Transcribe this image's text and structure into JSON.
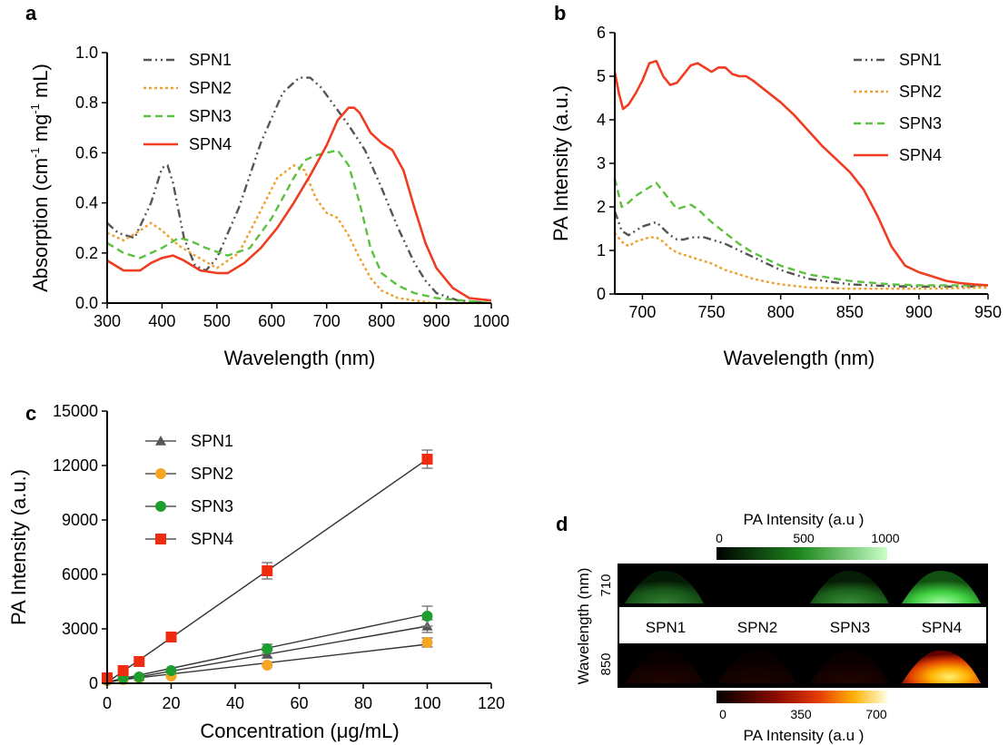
{
  "colors": {
    "SPN1": "#555555",
    "SPN2": "#f0a030",
    "SPN3": "#5cc040",
    "SPN4": "#f03c20",
    "c_SPN1": "#555555",
    "c_SPN2": "#f5a623",
    "c_SPN3": "#1e9e2e",
    "c_SPN4": "#f02c10"
  },
  "chart_data": [
    {
      "panel": "a",
      "type": "line",
      "xlabel": "Wavelength (nm)",
      "ylabel_main": "Absorption (cm",
      "ylabel_sup1": "-1",
      "ylabel_mid": " mg",
      "ylabel_sup2": "-1",
      "ylabel_end": " mL)",
      "xlim": [
        300,
        1000
      ],
      "ylim": [
        0,
        1.0
      ],
      "xticks": [
        "300",
        "400",
        "500",
        "600",
        "700",
        "800",
        "900",
        "1000"
      ],
      "yticks": [
        "0.0",
        "0.2",
        "0.4",
        "0.6",
        "0.8",
        "1.0"
      ],
      "legend": "top-left",
      "series": [
        {
          "name": "SPN1",
          "style": "dashdot",
          "x": [
            300,
            320,
            350,
            380,
            400,
            410,
            420,
            440,
            460,
            480,
            500,
            540,
            580,
            620,
            650,
            670,
            690,
            710,
            740,
            770,
            800,
            830,
            860,
            880,
            900,
            940,
            1000
          ],
          "y": [
            0.32,
            0.28,
            0.26,
            0.4,
            0.54,
            0.55,
            0.48,
            0.26,
            0.15,
            0.13,
            0.18,
            0.38,
            0.64,
            0.84,
            0.9,
            0.9,
            0.86,
            0.8,
            0.71,
            0.61,
            0.46,
            0.3,
            0.16,
            0.09,
            0.04,
            0.01,
            0.0
          ]
        },
        {
          "name": "SPN2",
          "style": "dotted",
          "x": [
            300,
            330,
            360,
            380,
            400,
            430,
            460,
            500,
            540,
            580,
            610,
            640,
            660,
            680,
            700,
            720,
            740,
            760,
            780,
            800,
            830,
            860,
            900,
            950,
            1000
          ],
          "y": [
            0.28,
            0.25,
            0.29,
            0.32,
            0.29,
            0.23,
            0.19,
            0.14,
            0.2,
            0.37,
            0.5,
            0.55,
            0.53,
            0.42,
            0.36,
            0.34,
            0.27,
            0.18,
            0.1,
            0.05,
            0.02,
            0.01,
            0.0,
            0.0,
            0.0
          ]
        },
        {
          "name": "SPN3",
          "style": "dashed",
          "x": [
            300,
            330,
            360,
            400,
            430,
            450,
            480,
            520,
            560,
            600,
            640,
            660,
            680,
            700,
            720,
            740,
            760,
            780,
            800,
            830,
            860,
            900,
            950,
            1000
          ],
          "y": [
            0.24,
            0.2,
            0.18,
            0.22,
            0.26,
            0.25,
            0.22,
            0.19,
            0.22,
            0.34,
            0.5,
            0.57,
            0.59,
            0.6,
            0.61,
            0.55,
            0.4,
            0.22,
            0.12,
            0.07,
            0.04,
            0.02,
            0.01,
            0.0
          ]
        },
        {
          "name": "SPN4",
          "style": "solid",
          "x": [
            300,
            330,
            360,
            380,
            400,
            420,
            440,
            470,
            500,
            520,
            550,
            580,
            610,
            640,
            670,
            700,
            720,
            740,
            750,
            760,
            780,
            800,
            820,
            840,
            860,
            880,
            900,
            930,
            960,
            1000
          ],
          "y": [
            0.17,
            0.13,
            0.13,
            0.16,
            0.18,
            0.19,
            0.17,
            0.13,
            0.12,
            0.12,
            0.16,
            0.22,
            0.3,
            0.4,
            0.51,
            0.63,
            0.73,
            0.78,
            0.78,
            0.76,
            0.68,
            0.64,
            0.61,
            0.53,
            0.38,
            0.24,
            0.14,
            0.06,
            0.02,
            0.01
          ]
        }
      ]
    },
    {
      "panel": "b",
      "type": "line",
      "xlabel": "Wavelength (nm)",
      "ylabel": "PA Intensity (a.u.)",
      "xlim": [
        680,
        950
      ],
      "ylim": [
        0,
        6
      ],
      "xticks": [
        "700",
        "750",
        "800",
        "850",
        "900",
        "950"
      ],
      "yticks": [
        "0",
        "1",
        "2",
        "3",
        "4",
        "5",
        "6"
      ],
      "legend": "top-right",
      "series": [
        {
          "name": "SPN1",
          "style": "dashdot",
          "x": [
            680,
            685,
            690,
            695,
            700,
            705,
            710,
            715,
            720,
            725,
            730,
            735,
            740,
            745,
            750,
            760,
            770,
            780,
            790,
            800,
            820,
            850,
            880,
            900,
            920,
            950
          ],
          "y": [
            1.9,
            1.45,
            1.35,
            1.45,
            1.55,
            1.6,
            1.65,
            1.5,
            1.35,
            1.25,
            1.25,
            1.3,
            1.3,
            1.3,
            1.25,
            1.15,
            1.0,
            0.85,
            0.7,
            0.55,
            0.35,
            0.22,
            0.18,
            0.17,
            0.17,
            0.17
          ]
        },
        {
          "name": "SPN2",
          "style": "dotted",
          "x": [
            680,
            685,
            690,
            695,
            700,
            705,
            710,
            715,
            720,
            725,
            730,
            740,
            750,
            760,
            770,
            780,
            790,
            800,
            820,
            850,
            880,
            900,
            920,
            950
          ],
          "y": [
            1.4,
            1.2,
            1.1,
            1.2,
            1.25,
            1.3,
            1.3,
            1.2,
            1.05,
            0.95,
            0.9,
            0.8,
            0.7,
            0.55,
            0.45,
            0.35,
            0.28,
            0.22,
            0.15,
            0.12,
            0.12,
            0.12,
            0.13,
            0.15
          ]
        },
        {
          "name": "SPN3",
          "style": "dashed",
          "x": [
            680,
            685,
            690,
            695,
            700,
            705,
            710,
            715,
            720,
            725,
            730,
            735,
            740,
            745,
            750,
            760,
            770,
            780,
            790,
            800,
            820,
            850,
            880,
            900,
            920,
            950
          ],
          "y": [
            2.65,
            2.0,
            2.1,
            2.25,
            2.35,
            2.45,
            2.55,
            2.35,
            2.15,
            1.95,
            2.0,
            2.05,
            1.95,
            1.8,
            1.65,
            1.4,
            1.15,
            0.95,
            0.8,
            0.65,
            0.45,
            0.3,
            0.22,
            0.2,
            0.2,
            0.2
          ]
        },
        {
          "name": "SPN4",
          "style": "solid",
          "x": [
            680,
            683,
            686,
            690,
            695,
            700,
            705,
            710,
            715,
            720,
            725,
            730,
            735,
            740,
            745,
            750,
            755,
            760,
            765,
            770,
            775,
            780,
            790,
            800,
            810,
            820,
            830,
            840,
            850,
            860,
            870,
            880,
            890,
            900,
            910,
            920,
            930,
            940,
            950
          ],
          "y": [
            5.1,
            4.6,
            4.25,
            4.35,
            4.6,
            4.9,
            5.3,
            5.35,
            5.0,
            4.8,
            4.85,
            5.05,
            5.25,
            5.3,
            5.2,
            5.1,
            5.2,
            5.2,
            5.05,
            5.0,
            5.0,
            4.9,
            4.65,
            4.4,
            4.1,
            3.75,
            3.4,
            3.1,
            2.8,
            2.4,
            1.8,
            1.1,
            0.65,
            0.5,
            0.4,
            0.3,
            0.25,
            0.22,
            0.2
          ]
        }
      ]
    },
    {
      "panel": "c",
      "type": "scatter",
      "xlabel": "Concentration (μg/mL)",
      "ylabel": "PA Intensity (a.u.)",
      "xlim": [
        0,
        120
      ],
      "ylim": [
        0,
        15000
      ],
      "xticks": [
        "0",
        "20",
        "40",
        "60",
        "80",
        "100",
        "120"
      ],
      "yticks": [
        "0",
        "3000",
        "6000",
        "9000",
        "12000",
        "15000"
      ],
      "legend": "top-left",
      "series": [
        {
          "name": "SPN1",
          "marker": "triangle",
          "x": [
            0,
            5,
            10,
            20,
            50,
            100
          ],
          "y": [
            250,
            300,
            350,
            650,
            1600,
            3150
          ],
          "err": [
            0,
            0,
            0,
            0,
            200,
            350
          ],
          "fit": [
            [
              0,
              50
            ],
            [
              100,
              3150
            ]
          ]
        },
        {
          "name": "SPN2",
          "marker": "circle",
          "x": [
            0,
            5,
            10,
            20,
            50,
            100
          ],
          "y": [
            150,
            200,
            300,
            400,
            1000,
            2250
          ],
          "err": [
            0,
            0,
            0,
            0,
            0,
            250
          ],
          "fit": [
            [
              0,
              100
            ],
            [
              100,
              2150
            ]
          ]
        },
        {
          "name": "SPN3",
          "marker": "circle",
          "x": [
            0,
            5,
            10,
            20,
            50,
            100
          ],
          "y": [
            200,
            300,
            350,
            700,
            1900,
            3700
          ],
          "err": [
            0,
            0,
            0,
            0,
            250,
            550
          ],
          "fit": [
            [
              0,
              80
            ],
            [
              100,
              3800
            ]
          ]
        },
        {
          "name": "SPN4",
          "marker": "square",
          "x": [
            0,
            5,
            10,
            20,
            50,
            100
          ],
          "y": [
            300,
            700,
            1200,
            2550,
            6200,
            12350
          ],
          "err": [
            0,
            0,
            0,
            0,
            450,
            500
          ],
          "fit": [
            [
              0,
              50
            ],
            [
              100,
              12350
            ]
          ]
        }
      ]
    },
    {
      "panel": "d",
      "type": "heatmap",
      "top_colorbar": {
        "title": "PA Intensity (a.u )",
        "ticks": [
          "0",
          "500",
          "1000"
        ]
      },
      "bottom_colorbar": {
        "title": "PA Intensity (a.u )",
        "ticks": [
          "0",
          "350",
          "700"
        ]
      },
      "ylabel": "Wavelength (nm)",
      "row_labels": [
        "710",
        "850"
      ],
      "column_labels": [
        "SPN1",
        "SPN2",
        "SPN3",
        "SPN4"
      ],
      "levels_710": [
        0.5,
        0.0,
        0.6,
        1.0
      ],
      "levels_850": [
        0.15,
        0.1,
        0.15,
        1.0
      ]
    }
  ],
  "panel_letters": [
    "a",
    "b",
    "c",
    "d"
  ]
}
